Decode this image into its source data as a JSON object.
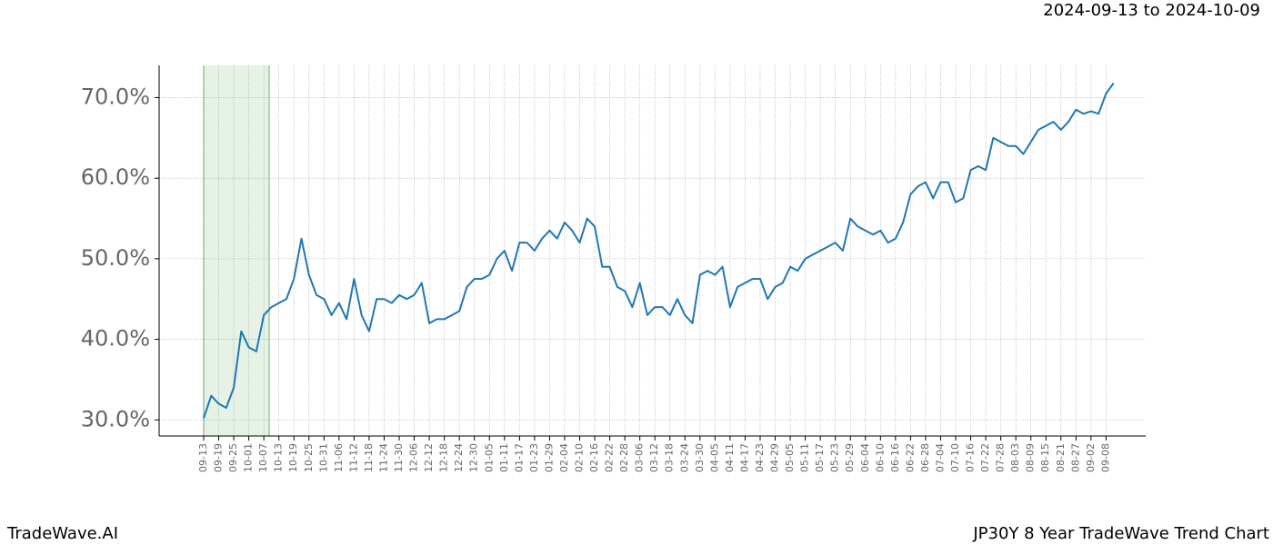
{
  "chart_data": {
    "type": "line",
    "subtitle": "2024-09-13 to 2024-10-09",
    "title": "JP30Y 8 Year TradeWave Trend Chart",
    "brand": "TradeWave.AI",
    "color": "#1f77b4",
    "grid": true,
    "ylim": [
      28,
      74
    ],
    "yticks": [
      {
        "value": 30,
        "label": "30.0%"
      },
      {
        "value": 40,
        "label": "40.0%"
      },
      {
        "value": 50,
        "label": "50.0%"
      },
      {
        "value": 60,
        "label": "60.0%"
      },
      {
        "value": 70,
        "label": "70.0%"
      }
    ],
    "categories": [
      "09-13",
      null,
      "09-19",
      null,
      "09-25",
      null,
      "10-01",
      null,
      "10-07",
      null,
      "10-13",
      null,
      "10-19",
      null,
      "10-25",
      null,
      "10-31",
      null,
      "11-06",
      null,
      "11-12",
      null,
      "11-18",
      null,
      "11-24",
      null,
      "11-30",
      null,
      "12-06",
      null,
      "12-12",
      null,
      "12-18",
      null,
      "12-24",
      null,
      "12-30",
      null,
      "01-05",
      null,
      "01-11",
      null,
      "01-17",
      null,
      "01-23",
      null,
      "01-29",
      null,
      "02-04",
      null,
      "02-10",
      null,
      "02-16",
      null,
      "02-22",
      null,
      "02-28",
      null,
      "03-06",
      null,
      "03-12",
      null,
      "03-18",
      null,
      "03-24",
      null,
      "03-30",
      null,
      "04-05",
      null,
      "04-11",
      null,
      "04-17",
      null,
      "04-23",
      null,
      "04-29",
      null,
      "05-05",
      null,
      "05-11",
      null,
      "05-17",
      null,
      "05-23",
      null,
      "05-29",
      null,
      "06-04",
      null,
      "06-10",
      null,
      "06-16",
      null,
      "06-22",
      null,
      "06-28",
      null,
      "07-04",
      null,
      "07-10",
      null,
      "07-16",
      null,
      "07-22",
      null,
      "07-28",
      null,
      "08-03",
      null,
      "08-09",
      null,
      "08-15",
      null,
      "08-21",
      null,
      "08-27",
      null,
      "09-02",
      null,
      "09-08",
      null
    ],
    "values": [
      30.2,
      33,
      32,
      31.5,
      34,
      41,
      39,
      38.5,
      43,
      44,
      44.5,
      45,
      47.5,
      52.5,
      48,
      45.5,
      45,
      43,
      44.5,
      42.5,
      47.5,
      43,
      41,
      45,
      45,
      44.5,
      45.5,
      45,
      45.5,
      47,
      42,
      42.5,
      42.5,
      43,
      43.5,
      46.5,
      47.5,
      47.5,
      48,
      50,
      51,
      48.5,
      52,
      52,
      51,
      52.5,
      53.5,
      52.5,
      54.5,
      53.5,
      52,
      55,
      54,
      49,
      49,
      46.5,
      46,
      44,
      47,
      43,
      44,
      44,
      43,
      45,
      43,
      42,
      48,
      48.5,
      48,
      49,
      44,
      46.5,
      47,
      47.5,
      47.5,
      45,
      46.5,
      47,
      49,
      48.5,
      50,
      50.5,
      51,
      51.5,
      52,
      51,
      55,
      54,
      53.5,
      53,
      53.5,
      52,
      52.5,
      54.5,
      58,
      59,
      59.5,
      57.5,
      59.5,
      59.5,
      57,
      57.5,
      61,
      61.5,
      61,
      65,
      64.5,
      64,
      64,
      63,
      64.5,
      66,
      66.5,
      67,
      66,
      67,
      68.5,
      68,
      68.3,
      68,
      70.5,
      71.8
    ]
  }
}
